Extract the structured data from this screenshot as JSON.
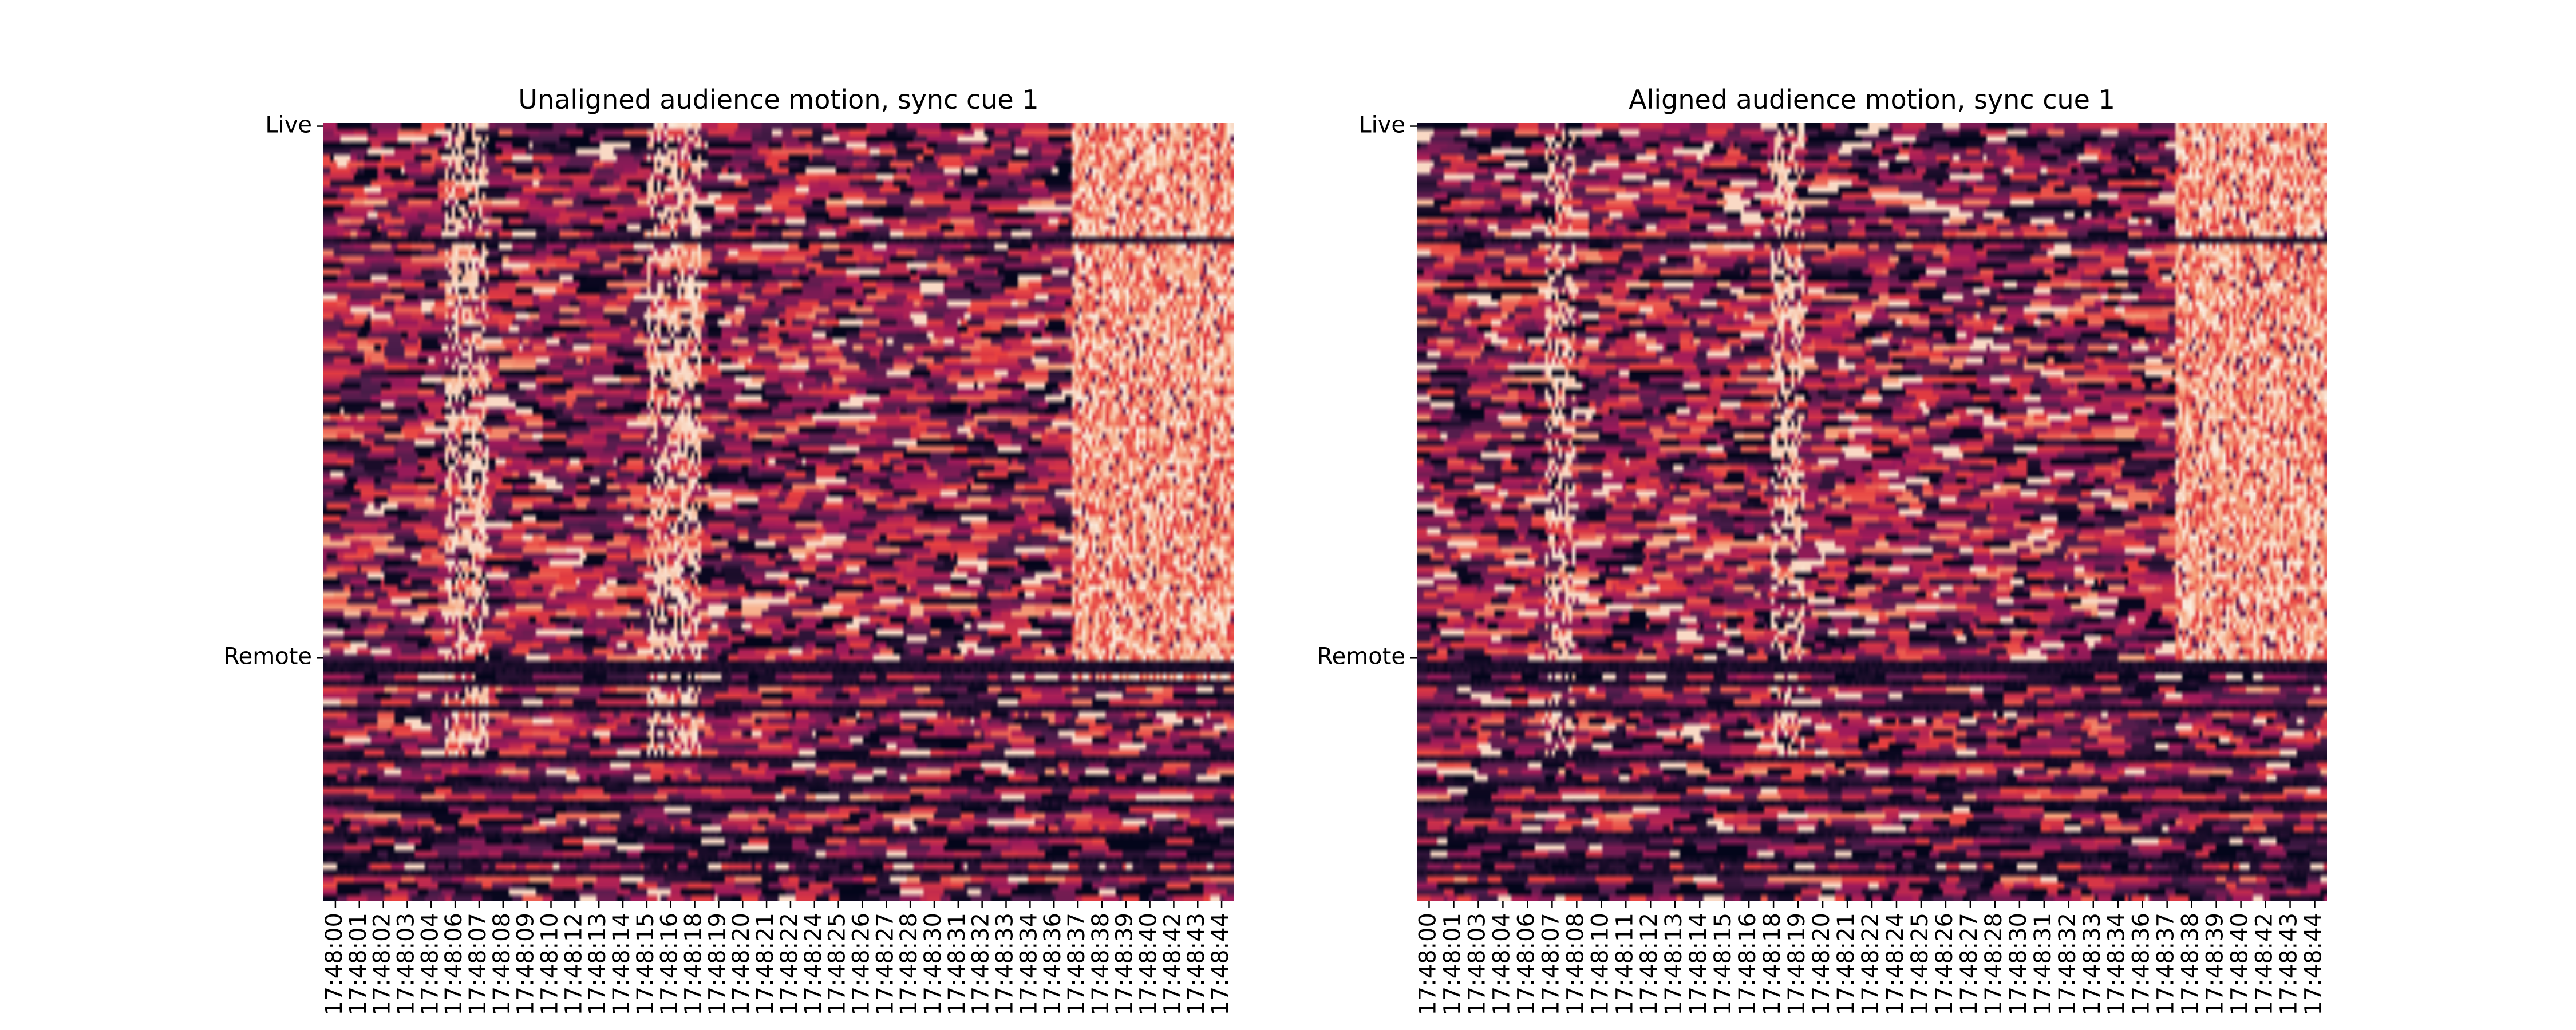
{
  "chart_data": [
    {
      "type": "heatmap",
      "title": "Unaligned audience motion, sync cue 1",
      "y_tick_labels": [
        "Live",
        "Remote"
      ],
      "y_tick_rows": [
        0,
        84
      ],
      "n_rows": 123,
      "x_tick_labels": [
        "17:48:00",
        "17:48:01",
        "17:48:02",
        "17:48:03",
        "17:48:04",
        "17:48:06",
        "17:48:07",
        "17:48:08",
        "17:48:09",
        "17:48:10",
        "17:48:12",
        "17:48:13",
        "17:48:14",
        "17:48:15",
        "17:48:16",
        "17:48:18",
        "17:48:19",
        "17:48:20",
        "17:48:21",
        "17:48:22",
        "17:48:24",
        "17:48:25",
        "17:48:26",
        "17:48:27",
        "17:48:28",
        "17:48:30",
        "17:48:31",
        "17:48:32",
        "17:48:33",
        "17:48:34",
        "17:48:36",
        "17:48:37",
        "17:48:38",
        "17:48:39",
        "17:48:40",
        "17:48:42",
        "17:48:43",
        "17:48:44"
      ],
      "colormap": [
        "#03051a",
        "#4c1d4b",
        "#a11a5b",
        "#e83f3f",
        "#f6a47c",
        "#faebdd"
      ],
      "colorbar": false,
      "features": {
        "flash_bands_s": [
          [
            6,
            8
          ],
          [
            16,
            18.5
          ]
        ],
        "bright_region_s": [
          37,
          45
        ],
        "bright_region_rows": [
          0,
          87
        ],
        "dark_rows": [
          18,
          85,
          86,
          88,
          92,
          100,
          104,
          107,
          112,
          116,
          118
        ]
      }
    },
    {
      "type": "heatmap",
      "title": "Aligned audience motion, sync cue 1",
      "y_tick_labels": [
        "Live",
        "Remote"
      ],
      "y_tick_rows": [
        0,
        84
      ],
      "n_rows": 123,
      "x_tick_labels": [
        "17:48:00",
        "17:48:01",
        "17:48:03",
        "17:48:04",
        "17:48:06",
        "17:48:07",
        "17:48:08",
        "17:48:10",
        "17:48:11",
        "17:48:12",
        "17:48:13",
        "17:48:14",
        "17:48:15",
        "17:48:16",
        "17:48:18",
        "17:48:19",
        "17:48:20",
        "17:48:21",
        "17:48:22",
        "17:48:24",
        "17:48:25",
        "17:48:26",
        "17:48:27",
        "17:48:28",
        "17:48:30",
        "17:48:31",
        "17:48:32",
        "17:48:33",
        "17:48:34",
        "17:48:36",
        "17:48:37",
        "17:48:38",
        "17:48:39",
        "17:48:40",
        "17:48:42",
        "17:48:43",
        "17:48:44"
      ],
      "colormap": [
        "#03051a",
        "#4c1d4b",
        "#a11a5b",
        "#e83f3f",
        "#f6a47c",
        "#faebdd"
      ],
      "colorbar": false,
      "features": {
        "flash_bands_s": [
          [
            6.2,
            7.8
          ],
          [
            17.5,
            19
          ]
        ],
        "bright_region_s": [
          37.5,
          45
        ],
        "bright_region_rows": [
          0,
          86
        ],
        "dark_rows": [
          18,
          85,
          86,
          88,
          92,
          100,
          104,
          107,
          112,
          116,
          118
        ]
      }
    }
  ]
}
